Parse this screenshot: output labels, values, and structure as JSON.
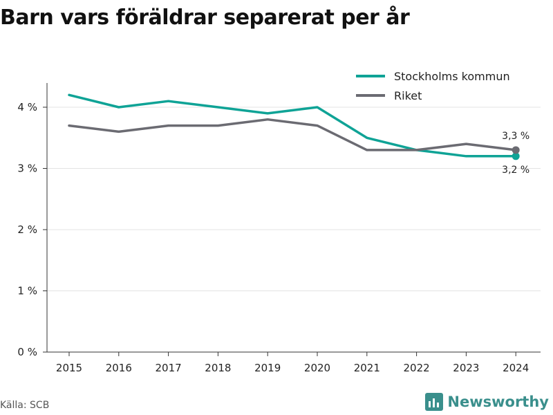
{
  "title": "Barn vars föräldrar separerat per år",
  "source": "Källa: SCB",
  "brand": {
    "name": "Newsworthy",
    "logo_icon": "bar-chart-logo-icon",
    "color": "#3a8f8c"
  },
  "chart_data": {
    "type": "line",
    "title": "Barn vars föräldrar separerat per år",
    "x": [
      "2015",
      "2016",
      "2017",
      "2018",
      "2019",
      "2020",
      "2021",
      "2022",
      "2023",
      "2024"
    ],
    "series": [
      {
        "name": "Stockholms kommun",
        "color": "#0fa396",
        "values": [
          4.2,
          4.0,
          4.1,
          4.0,
          3.9,
          4.0,
          3.5,
          3.3,
          3.2,
          3.2
        ],
        "end_label": "3,2 %"
      },
      {
        "name": "Riket",
        "color": "#6b6b72",
        "values": [
          3.7,
          3.6,
          3.7,
          3.7,
          3.8,
          3.7,
          3.3,
          3.3,
          3.4,
          3.3
        ],
        "end_label": "3,3 %"
      }
    ],
    "ylim": [
      0,
      4.5
    ],
    "yticks": [
      0,
      1,
      2,
      3,
      4
    ],
    "ytick_labels": [
      "0 %",
      "1 %",
      "2 %",
      "3 %",
      "4 %"
    ],
    "grid": true,
    "legend_position": "top-right",
    "xlabel": "",
    "ylabel": ""
  }
}
